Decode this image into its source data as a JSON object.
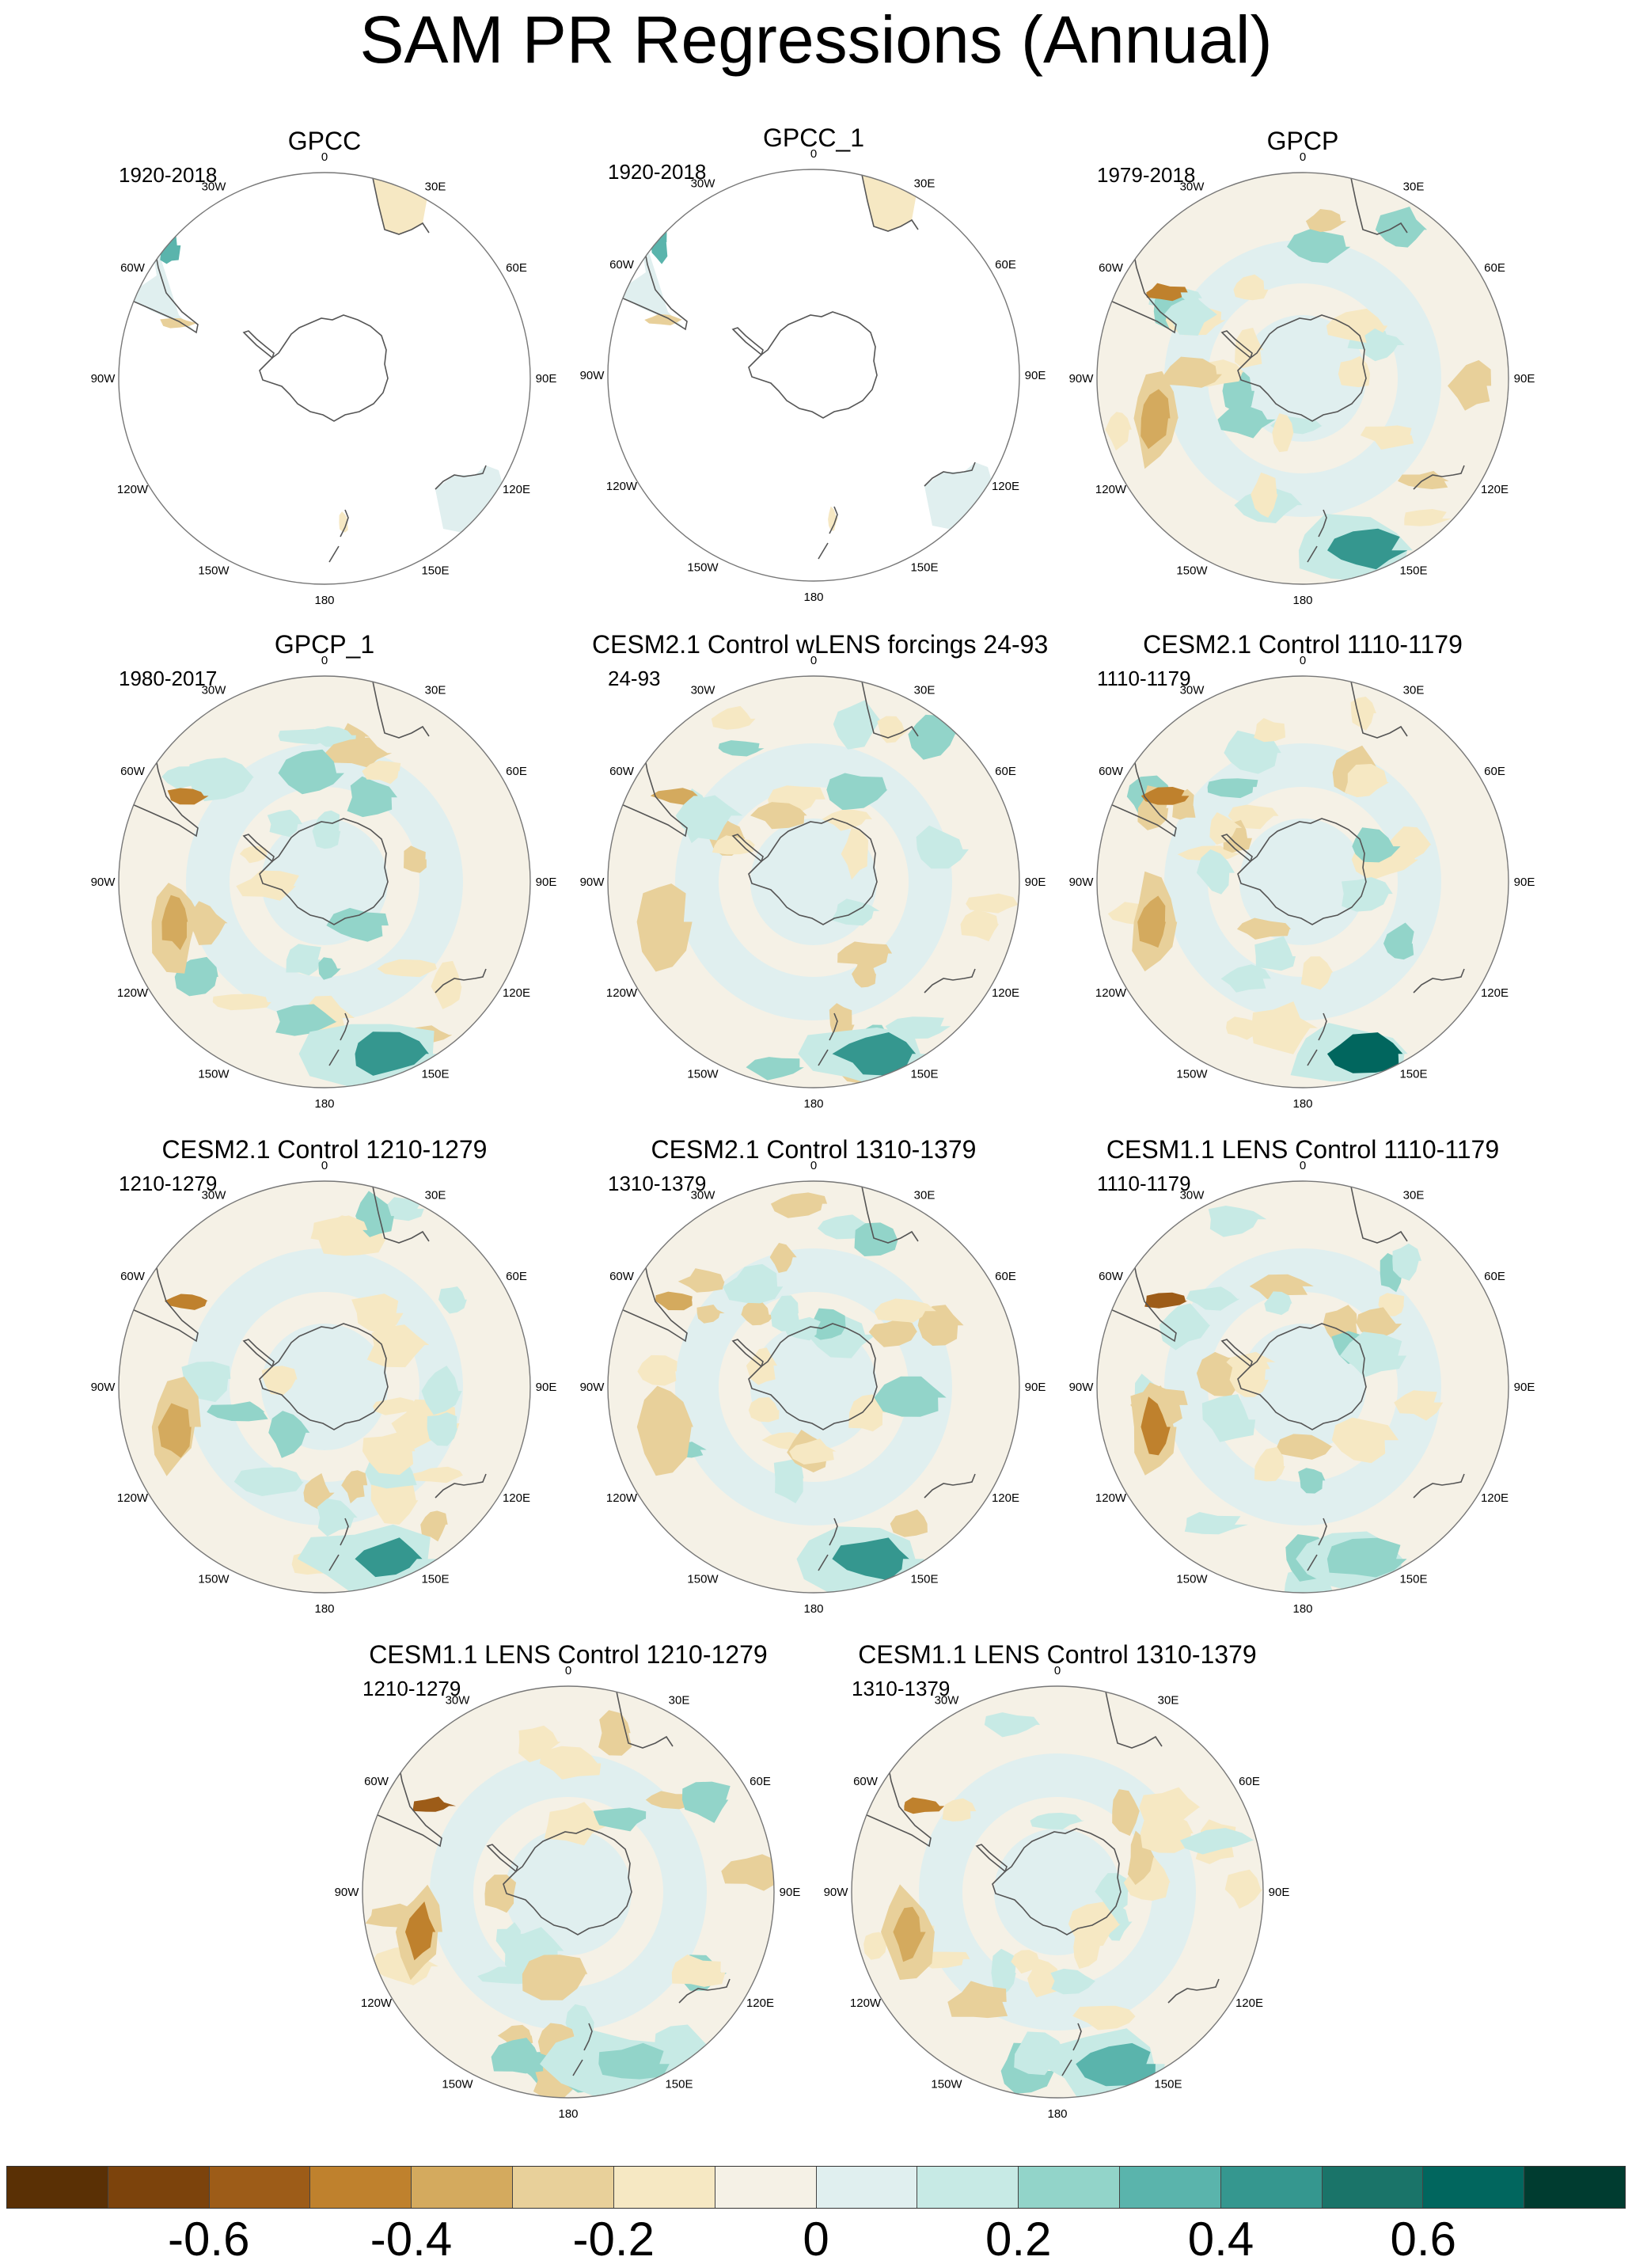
{
  "title": "SAM PR Regressions (Annual)",
  "lon_labels": [
    "0",
    "30E",
    "60E",
    "90E",
    "120E",
    "150E",
    "180",
    "150W",
    "120W",
    "90W",
    "60W",
    "30W"
  ],
  "colors": {
    "levels": [
      "#5a3005",
      "#7c430c",
      "#9d5c18",
      "#bf812d",
      "#d4aa5e",
      "#e8d09a",
      "#f6e8c3",
      "#f5f1e6",
      "#e0efef",
      "#c7eae5",
      "#92d4c9",
      "#5ab4ac",
      "#35978f",
      "#1a7469",
      "#01665e",
      "#003c30"
    ],
    "coast": "#555555",
    "border": "#777777"
  },
  "colorbar": {
    "ticks": [
      "-0.6",
      "-0.4",
      "-0.2",
      "0",
      "0.2",
      "0.4",
      "0.6"
    ]
  },
  "panels": [
    {
      "title": "GPCC",
      "period": "1920-2018",
      "coverage": "land"
    },
    {
      "title": "GPCC_1",
      "period": "1920-2018",
      "coverage": "land"
    },
    {
      "title": "GPCP",
      "period": "1979-2018",
      "coverage": "full"
    },
    {
      "title": "GPCP_1",
      "period": "1980-2017",
      "coverage": "full"
    },
    {
      "title": "CESM2.1 Control wLENS forcings 24-93",
      "period": "24-93",
      "coverage": "full"
    },
    {
      "title": "CESM2.1 Control 1110-1179",
      "period": "1110-1179",
      "coverage": "full"
    },
    {
      "title": "CESM2.1 Control 1210-1279",
      "period": "1210-1279",
      "coverage": "full"
    },
    {
      "title": "CESM2.1 Control 1310-1379",
      "period": "1310-1379",
      "coverage": "full"
    },
    {
      "title": "CESM1.1 LENS Control 1110-1179",
      "period": "1110-1179",
      "coverage": "full"
    },
    {
      "title": "CESM1.1 LENS Control 1210-1279",
      "period": "1210-1279",
      "coverage": "full"
    },
    {
      "title": "CESM1.1 LENS Control 1310-1379",
      "period": "1310-1379",
      "coverage": "full"
    }
  ]
}
